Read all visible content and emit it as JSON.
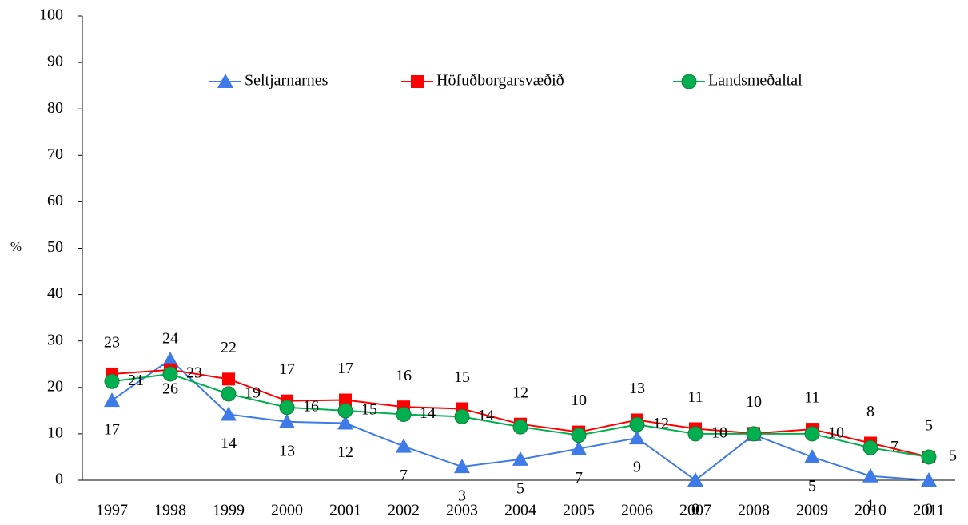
{
  "chart_data": {
    "type": "line",
    "y_label": "%",
    "categories": [
      "1997",
      "1998",
      "1999",
      "2000",
      "2001",
      "2002",
      "2003",
      "2004",
      "2005",
      "2006",
      "2007",
      "2008",
      "2009",
      "2010",
      "2011"
    ],
    "ylim": [
      0,
      100
    ],
    "yticks": [
      0,
      10,
      20,
      30,
      40,
      50,
      60,
      70,
      80,
      90,
      100
    ],
    "legend": "top",
    "series": [
      {
        "name": "Seltjarnarnes",
        "color": "#3f7be8",
        "marker": "triangle",
        "values": [
          17.2,
          26,
          14.2,
          12.6,
          12.3,
          7.3,
          2.9,
          4.5,
          6.8,
          9.1,
          0,
          9.8,
          5,
          0.9,
          0
        ],
        "value_labels": [
          "17",
          "26",
          "14",
          "13",
          "12",
          "7",
          "3",
          "5",
          "7",
          "9",
          "0",
          null,
          "5",
          "1",
          "0"
        ]
      },
      {
        "name": "Höfuðborgarsvæðið",
        "color": "#ff0000",
        "marker": "square",
        "values": [
          22.9,
          23.8,
          21.8,
          17.1,
          17.3,
          15.8,
          15.4,
          12.1,
          10.4,
          13.0,
          11.1,
          10.1,
          11.0,
          8.0,
          5.0
        ],
        "value_labels": [
          "23",
          "24",
          "22",
          "17",
          "17",
          "16",
          "15",
          "12",
          "10",
          "13",
          "11",
          "10",
          "11",
          "8",
          "5"
        ]
      },
      {
        "name": "Landsmeðaltal",
        "color": "#00b050",
        "marker": "circle",
        "values": [
          21.3,
          22.9,
          18.6,
          15.7,
          15.0,
          14.2,
          13.7,
          11.5,
          9.7,
          12.0,
          10.0,
          10.0,
          10.0,
          7.0,
          5.0
        ],
        "value_labels": [
          "21",
          "23",
          "19",
          "16",
          "15",
          "14",
          "14",
          null,
          null,
          "12",
          "10",
          null,
          "10",
          "7",
          "5"
        ]
      }
    ]
  }
}
